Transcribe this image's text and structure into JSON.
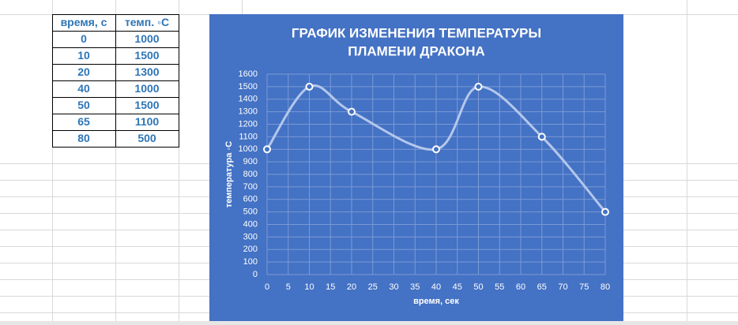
{
  "table": {
    "header": [
      "время, с",
      "темп. ◦С"
    ],
    "rows": [
      [
        0,
        1000
      ],
      [
        10,
        1500
      ],
      [
        20,
        1300
      ],
      [
        40,
        1000
      ],
      [
        50,
        1500
      ],
      [
        65,
        1100
      ],
      [
        80,
        500
      ]
    ]
  },
  "chart_data": {
    "type": "line",
    "smooth": true,
    "title": [
      "ГРАФИК ИЗМЕНЕНИЯ ТЕМПЕРАТУРЫ",
      "ПЛАМЕНИ ДРАКОНА"
    ],
    "x_label": "время, сек",
    "y_label": "температура ◦С",
    "x": [
      0,
      10,
      20,
      40,
      50,
      65,
      80
    ],
    "values": [
      1000,
      1500,
      1300,
      1000,
      1500,
      1100,
      500
    ],
    "color": "#b4c7ec",
    "marker_color": "#ffffff",
    "background": "#4472c4",
    "xlim": [
      0,
      80
    ],
    "xticks": [
      0,
      5,
      10,
      15,
      20,
      25,
      30,
      35,
      40,
      45,
      50,
      55,
      60,
      65,
      70,
      75,
      80
    ],
    "ylim": [
      0,
      1600
    ],
    "yticks": [
      0,
      100,
      200,
      300,
      400,
      500,
      600,
      700,
      800,
      900,
      1000,
      1100,
      1200,
      1300,
      1400,
      1500,
      1600
    ],
    "grid": true
  }
}
